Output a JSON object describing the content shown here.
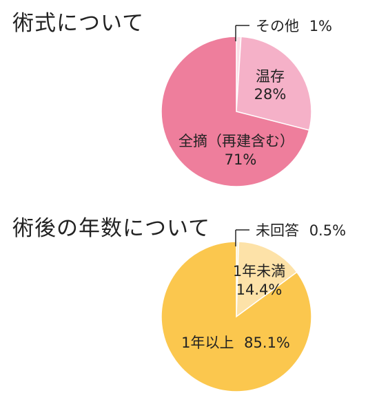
{
  "chart_data": [
    {
      "type": "pie",
      "title": "術式について",
      "slices": [
        {
          "label": "温存",
          "value": 28,
          "value_label": "28%",
          "color": "#f5b1c8"
        },
        {
          "label": "全摘（再建含む）",
          "value": 71,
          "value_label": "71%",
          "color": "#ee7e9c"
        },
        {
          "label": "その他",
          "value": 1,
          "value_label": "1%",
          "color": "#fbdde6"
        }
      ]
    },
    {
      "type": "pie",
      "title": "術後の年数について",
      "slices": [
        {
          "label": "1年未満",
          "value": 14.4,
          "value_label": "14.4%",
          "color": "#fde2a8"
        },
        {
          "label": "1年以上",
          "value": 85.1,
          "value_label": "85.1%",
          "color": "#fbc74e"
        },
        {
          "label": "未回答",
          "value": 0.5,
          "value_label": "0.5%",
          "color": "#fef0d0"
        }
      ]
    }
  ]
}
